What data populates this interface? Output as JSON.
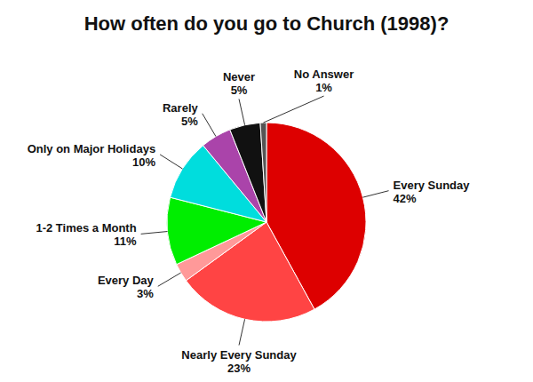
{
  "chart_data": {
    "type": "pie",
    "title": "How often do you go to Church (1998)?",
    "categories": [
      "Every Sunday",
      "Nearly Every Sunday",
      "Every Day",
      "1-2 Times a Month",
      "Only on Major Holidays",
      "Rarely",
      "Never",
      "No Answer"
    ],
    "values": [
      42,
      23,
      3,
      11,
      10,
      5,
      5,
      1
    ],
    "value_labels": [
      "42%",
      "23%",
      "3%",
      "11%",
      "10%",
      "5%",
      "5%",
      "1%"
    ],
    "colors": [
      "#DD0000",
      "#FF4444",
      "#FF9999",
      "#00EE00",
      "#00DDDD",
      "#AA44AA",
      "#111111",
      "#555555"
    ],
    "data_labels": true
  }
}
